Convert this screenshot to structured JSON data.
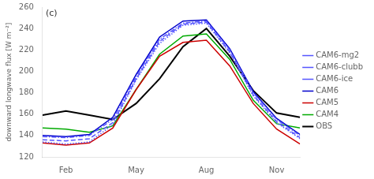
{
  "chart_data": {
    "type": "line",
    "annotation": "(c)",
    "ylabel": "downward longwave flux [W m⁻²]",
    "x": [
      1,
      2,
      3,
      4,
      5,
      6,
      7,
      8,
      9,
      10,
      11,
      12
    ],
    "xlim": [
      1,
      12
    ],
    "xticks": [
      {
        "value": 2,
        "label": "Feb"
      },
      {
        "value": 5,
        "label": "May"
      },
      {
        "value": 8,
        "label": "Aug"
      },
      {
        "value": 11,
        "label": "Nov"
      }
    ],
    "ylim": [
      120,
      260
    ],
    "yticks": [
      120,
      140,
      160,
      180,
      200,
      220,
      240,
      260
    ],
    "grid": false,
    "legend": "right",
    "series": [
      {
        "name": "CAM6-mg2",
        "color": "#5555ff",
        "line_style": "dashdot",
        "values": [
          139,
          138,
          140,
          155,
          195,
          230,
          245,
          247,
          220,
          180,
          155,
          140
        ]
      },
      {
        "name": "CAM6-clubb",
        "color": "#5555ff",
        "line_style": "dotted",
        "values": [
          134,
          132,
          134,
          150,
          192,
          226,
          243,
          245,
          217,
          177,
          152,
          137
        ]
      },
      {
        "name": "CAM6-ice",
        "color": "#5555ff",
        "line_style": "dashed",
        "values": [
          136,
          135,
          137,
          152,
          193,
          228,
          244,
          246,
          218,
          178,
          153,
          138
        ]
      },
      {
        "name": "CAM6",
        "color": "#0000cc",
        "line_style": "solid",
        "values": [
          140,
          139,
          141,
          157,
          197,
          232,
          247,
          248,
          221,
          181,
          156,
          141
        ]
      },
      {
        "name": "CAM5",
        "color": "#cc0000",
        "line_style": "solid",
        "values": [
          133,
          131,
          133,
          147,
          183,
          214,
          227,
          229,
          205,
          170,
          146,
          132
        ]
      },
      {
        "name": "CAM4",
        "color": "#00aa00",
        "line_style": "solid",
        "values": [
          147,
          146,
          143,
          149,
          183,
          216,
          233,
          235,
          211,
          173,
          151,
          147
        ]
      },
      {
        "name": "OBS",
        "color": "#000000",
        "line_style": "solid",
        "values": [
          159,
          163,
          159,
          155,
          170,
          193,
          223,
          240,
          214,
          182,
          161,
          157
        ]
      }
    ]
  }
}
